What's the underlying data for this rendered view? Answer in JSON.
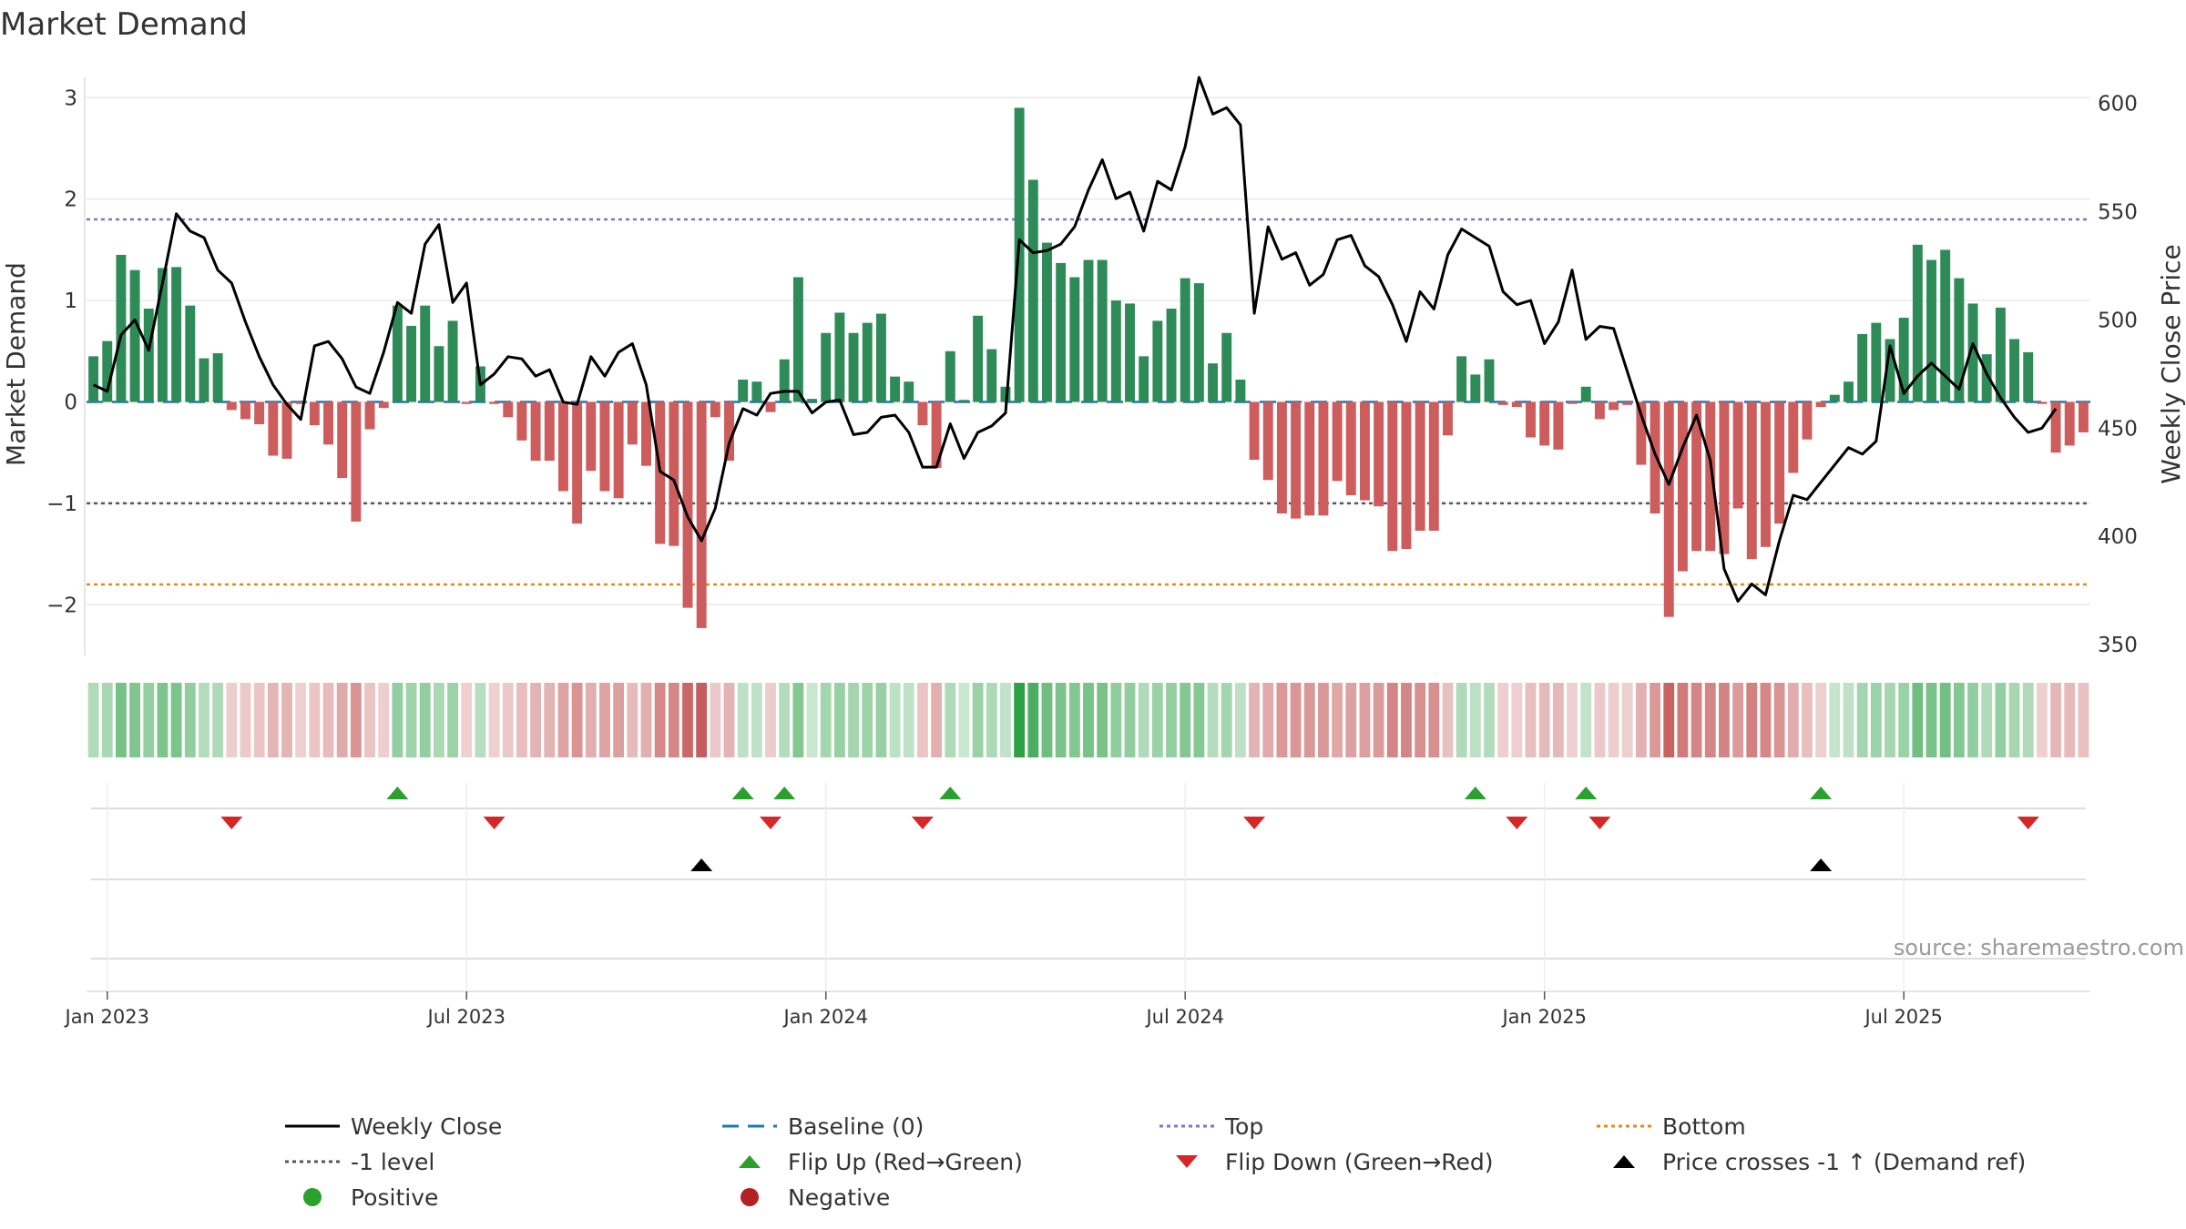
{
  "chart_data": {
    "type": "bar",
    "title": "Market Demand",
    "ylabel_left": "Market Demand",
    "ylabel_right": "Weekly Close Price",
    "source": "source: sharemaestro.com",
    "ylim_left": [
      -2.5,
      3.2
    ],
    "ylim_right": [
      345,
      612
    ],
    "yticks_left": [
      3,
      2,
      1,
      0,
      -1,
      -2
    ],
    "yticks_left_labels": [
      "3",
      "2",
      "1",
      "0",
      "−1",
      "−2"
    ],
    "yticks_right": [
      600,
      550,
      500,
      450,
      400,
      350
    ],
    "xticks": [
      {
        "label": "Jan 2023",
        "week": 1
      },
      {
        "label": "Jul 2023",
        "week": 27
      },
      {
        "label": "Jan 2024",
        "week": 53
      },
      {
        "label": "Jul 2024",
        "week": 79
      },
      {
        "label": "Jan 2025",
        "week": 105
      },
      {
        "label": "Jul 2025",
        "week": 131
      }
    ],
    "series_bars": {
      "name": "Market Demand",
      "positive_color": "#2e8b57",
      "negative_color": "#cd5c5c",
      "values": [
        0.45,
        0.6,
        1.45,
        1.3,
        0.92,
        1.32,
        1.33,
        0.95,
        0.43,
        0.48,
        -0.08,
        -0.17,
        -0.22,
        -0.53,
        -0.56,
        -0.02,
        -0.23,
        -0.42,
        -0.75,
        -1.18,
        -0.27,
        -0.06,
        0.95,
        0.75,
        0.95,
        0.55,
        0.8,
        -0.02,
        0.35,
        -0.02,
        -0.15,
        -0.38,
        -0.58,
        -0.58,
        -0.88,
        -1.2,
        -0.68,
        -0.88,
        -0.95,
        -0.42,
        -0.63,
        -1.4,
        -1.42,
        -2.03,
        -2.23,
        -0.15,
        -0.58,
        0.22,
        0.2,
        -0.1,
        0.42,
        1.23,
        0.03,
        0.68,
        0.88,
        0.68,
        0.78,
        0.87,
        0.25,
        0.2,
        -0.23,
        -0.65,
        0.5,
        0.02,
        0.85,
        0.52,
        0.15,
        2.9,
        2.19,
        1.57,
        1.37,
        1.23,
        1.4,
        1.4,
        1.0,
        0.97,
        0.45,
        0.8,
        0.92,
        1.22,
        1.17,
        0.38,
        0.68,
        0.22,
        -0.57,
        -0.77,
        -1.1,
        -1.15,
        -1.12,
        -1.12,
        -0.78,
        -0.92,
        -0.97,
        -1.03,
        -1.47,
        -1.45,
        -1.27,
        -1.27,
        -0.33,
        0.45,
        0.27,
        0.42,
        -0.03,
        -0.05,
        -0.35,
        -0.43,
        -0.47,
        -0.02,
        0.15,
        -0.17,
        -0.08,
        -0.03,
        -0.62,
        -1.1,
        -2.12,
        -1.67,
        -1.47,
        -1.47,
        -1.5,
        -1.05,
        -1.55,
        -1.43,
        -1.2,
        -0.7,
        -0.37,
        -0.05,
        0.07,
        0.2,
        0.67,
        0.78,
        0.62,
        0.83,
        1.55,
        1.4,
        1.5,
        1.22,
        0.97,
        0.47,
        0.93,
        0.62,
        0.49,
        -0.02,
        -0.5,
        -0.43,
        -0.3
      ]
    },
    "series_line": {
      "name": "Weekly Close",
      "color": "#000000",
      "values": [
        470,
        467,
        493,
        500,
        486,
        517,
        549,
        541,
        538,
        523,
        517,
        499,
        483,
        470,
        461,
        454,
        488,
        490,
        482,
        469,
        466,
        485,
        508,
        503,
        535,
        544,
        508,
        517,
        470,
        475,
        483,
        482,
        474,
        477,
        462,
        461,
        483,
        474,
        485,
        489,
        470,
        430,
        426,
        409,
        398,
        413,
        443,
        459,
        456,
        466,
        467,
        467,
        457,
        462,
        463,
        447,
        448,
        455,
        456,
        448,
        432,
        432,
        452,
        436,
        448,
        451,
        457,
        537,
        531,
        532,
        535,
        543,
        560,
        574,
        556,
        559,
        541,
        564,
        560,
        580,
        612,
        595,
        598,
        590,
        503,
        543,
        528,
        531,
        516,
        521,
        537,
        539,
        525,
        520,
        507,
        490,
        513,
        505,
        530,
        542,
        538,
        534,
        513,
        507,
        509,
        489,
        499,
        523,
        491,
        497,
        496,
        476,
        456,
        438,
        424,
        441,
        456,
        435,
        385,
        370,
        378,
        373,
        398,
        419,
        417,
        425,
        433,
        441,
        438,
        444,
        488,
        466,
        474,
        480,
        474,
        468,
        489,
        475,
        464,
        455,
        448,
        450,
        459
      ]
    },
    "reference_lines": [
      {
        "name": "Baseline (0)",
        "value": 0,
        "axis": "left",
        "color": "#1f77b4",
        "style": "dashed"
      },
      {
        "name": "Top",
        "value": 1.8,
        "axis": "left",
        "color": "#7b76c9",
        "style": "dotted"
      },
      {
        "name": "-1 level",
        "value": -1,
        "axis": "left",
        "color": "#555566",
        "style": "dotted"
      },
      {
        "name": "Bottom",
        "value": -1.8,
        "axis": "left",
        "color": "#e08a1a",
        "style": "dotted"
      }
    ],
    "flip_up_weeks": [
      22,
      47,
      50,
      62,
      100,
      108,
      125
    ],
    "flip_down_weeks": [
      10,
      29,
      49,
      60,
      84,
      103,
      109,
      140
    ],
    "price_cross_weeks": [
      44,
      125
    ],
    "legend": [
      {
        "label": "Weekly Close",
        "kind": "line",
        "color": "#000000",
        "dash": ""
      },
      {
        "label": "Baseline (0)",
        "kind": "line",
        "color": "#1f77b4",
        "dash": "18,10"
      },
      {
        "label": "Top",
        "kind": "line",
        "color": "#7b76c9",
        "dash": "4,4"
      },
      {
        "label": "Bottom",
        "kind": "line",
        "color": "#e08a1a",
        "dash": "4,4"
      },
      {
        "label": "-1 level",
        "kind": "line",
        "color": "#555566",
        "dash": "4,4"
      },
      {
        "label": "Flip Up (Red→Green)",
        "kind": "tri-up",
        "color": "#2ca02c"
      },
      {
        "label": "Flip Down (Green→Red)",
        "kind": "tri-down",
        "color": "#d62728"
      },
      {
        "label": "Price crosses -1 ↑ (Demand ref)",
        "kind": "tri-up",
        "color": "#000000"
      },
      {
        "label": "Positive",
        "kind": "dot",
        "color": "#2ca02c"
      },
      {
        "label": "Negative",
        "kind": "dot",
        "color": "#b22222"
      }
    ]
  }
}
